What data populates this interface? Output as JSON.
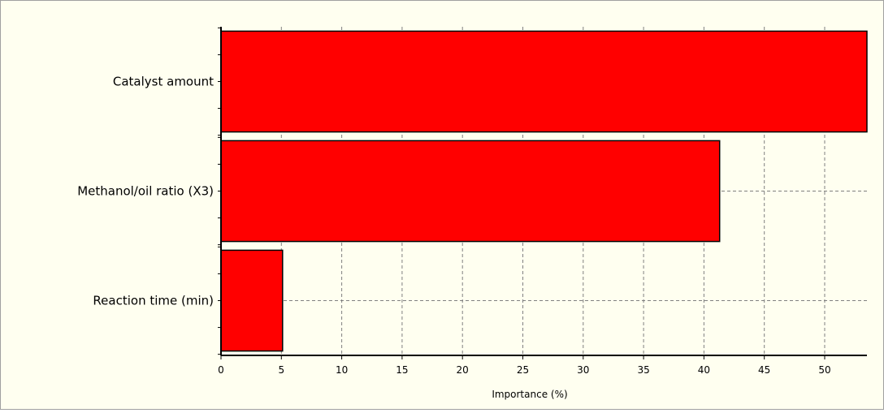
{
  "colors": {
    "background": "#fffff0",
    "bar_fill": "#ff0000",
    "bar_stroke": "#000000",
    "grid": "#808080"
  },
  "chart_data": {
    "type": "bar",
    "orientation": "horizontal",
    "categories": [
      "Catalyst amount",
      "Methanol/oil ratio (X3)",
      "Reaction time (min)"
    ],
    "values": [
      53.5,
      41.3,
      5.1
    ],
    "xlabel": "Importance (%)",
    "ylabel": "",
    "xlim": [
      0,
      53.5
    ],
    "xticks": [
      0,
      5,
      10,
      15,
      20,
      25,
      30,
      35,
      40,
      45,
      50
    ],
    "grid": true
  }
}
